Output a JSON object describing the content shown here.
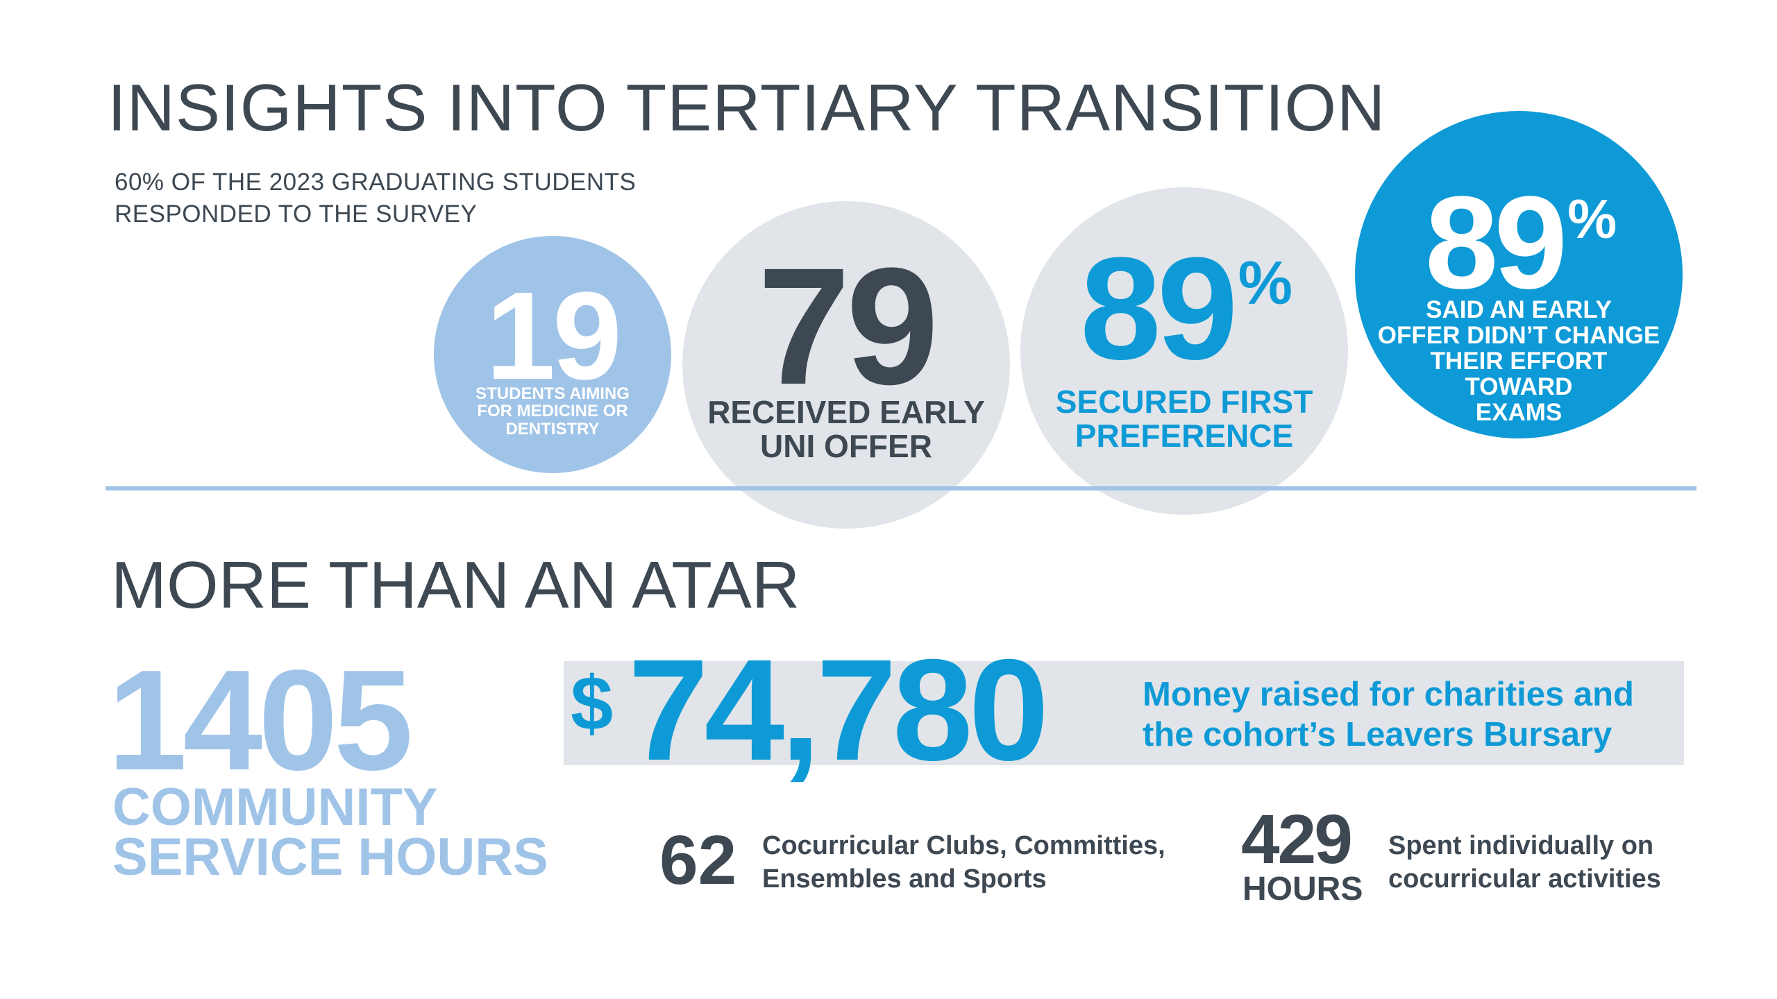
{
  "section1": {
    "title": "INSIGHTS INTO TERTIARY TRANSITION",
    "subtitle_lines": [
      "60% OF THE 2023 GRADUATING STUDENTS",
      "RESPONDED TO THE SURVEY"
    ]
  },
  "stats": [
    {
      "value": "19",
      "suffix": "",
      "caption_lines": [
        "STUDENTS AIMING",
        "FOR MEDICINE OR",
        "DENTISTRY"
      ],
      "color": "#a0c4e8"
    },
    {
      "value": "79",
      "suffix": "",
      "caption_lines": [
        "RECEIVED EARLY",
        "UNI OFFER"
      ],
      "color": "#e1e5e9"
    },
    {
      "value": "89",
      "suffix": "%",
      "caption_lines": [
        "SECURED FIRST",
        "PREFERENCE"
      ],
      "color": "#e1e5e9"
    },
    {
      "value": "89",
      "suffix": "%",
      "caption_lines": [
        "SAID AN EARLY",
        "OFFER DIDN’T CHANGE",
        "THEIR EFFORT",
        "TOWARD",
        "EXAMS"
      ],
      "color": "#0e9ad6"
    }
  ],
  "section2": {
    "title": "MORE THAN AN ATAR",
    "community": {
      "value": "1405",
      "label_lines": [
        "COMMUNITY",
        "SERVICE HOURS"
      ]
    },
    "money": {
      "currency": "$",
      "value": "74,780",
      "label_lines": [
        "Money raised for charities and",
        "the cohort’s Leavers Bursary"
      ]
    },
    "clubs": {
      "value": "62",
      "label_lines": [
        "Cocurricular Clubs, Committies,",
        "Ensembles and Sports"
      ]
    },
    "hours": {
      "value": "429",
      "unit": "HOURS",
      "label_lines": [
        "Spent individually on",
        "cocurricular activities"
      ]
    }
  },
  "colors": {
    "dark": "#3d4852",
    "light_blue": "#a0c4e8",
    "bright_blue": "#0e9ad6",
    "light_grey": "#e1e5e9"
  }
}
